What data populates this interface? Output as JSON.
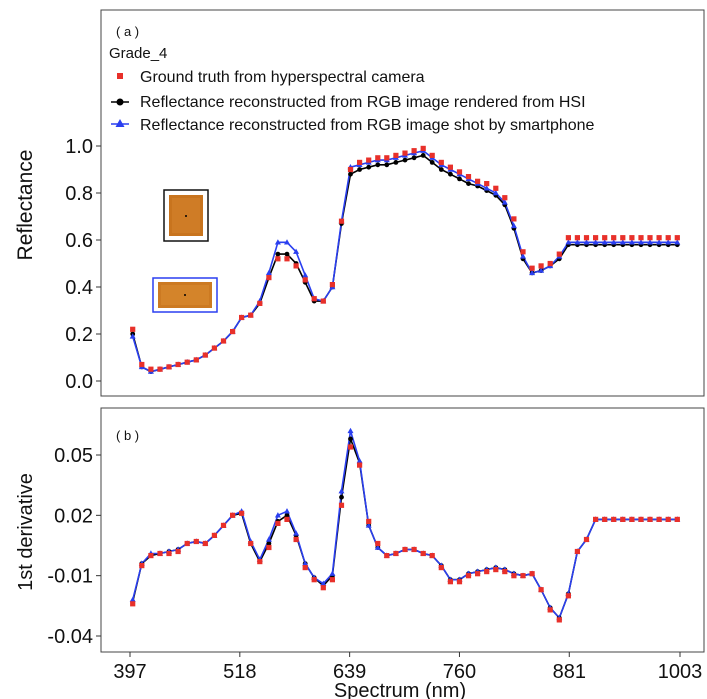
{
  "chart_data": [
    {
      "panel_label": "( a )",
      "subtitle": "Grade_4",
      "type": "scatter",
      "ylabel": "Reflectance",
      "xlim": [
        397,
        1003
      ],
      "ylim": [
        -0.05,
        1.1
      ],
      "yticks": [
        "0.0",
        "0.2",
        "0.4",
        "0.6",
        "0.8",
        "1.0"
      ],
      "yticks_values": [
        0.0,
        0.2,
        0.4,
        0.6,
        0.8,
        1.0
      ],
      "legend_position": "top-left",
      "x": [
        400,
        410,
        420,
        430,
        440,
        450,
        460,
        470,
        480,
        490,
        500,
        510,
        520,
        530,
        540,
        550,
        560,
        570,
        580,
        590,
        600,
        610,
        620,
        630,
        640,
        650,
        660,
        670,
        680,
        690,
        700,
        710,
        720,
        730,
        740,
        750,
        760,
        770,
        780,
        790,
        800,
        810,
        820,
        830,
        840,
        850,
        860,
        870,
        880,
        890,
        900,
        910,
        920,
        930,
        940,
        950,
        960,
        970,
        980,
        990,
        1000
      ],
      "series": [
        {
          "name": "Ground truth from hyperspectral camera",
          "color": "#e8302a",
          "marker": "square",
          "values": [
            0.22,
            0.07,
            0.05,
            0.05,
            0.06,
            0.07,
            0.08,
            0.09,
            0.11,
            0.14,
            0.17,
            0.21,
            0.27,
            0.28,
            0.33,
            0.44,
            0.52,
            0.52,
            0.49,
            0.43,
            0.35,
            0.34,
            0.41,
            0.68,
            0.9,
            0.93,
            0.94,
            0.95,
            0.95,
            0.96,
            0.97,
            0.98,
            0.99,
            0.96,
            0.93,
            0.91,
            0.89,
            0.87,
            0.85,
            0.84,
            0.82,
            0.78,
            0.69,
            0.55,
            0.48,
            0.49,
            0.5,
            0.54,
            0.61,
            0.61,
            0.61,
            0.61,
            0.61,
            0.61,
            0.61,
            0.61,
            0.61,
            0.61,
            0.61,
            0.61,
            0.61
          ]
        },
        {
          "name": "Reflectance reconstructed from RGB image rendered from HSI",
          "color": "#000000",
          "marker": "circle",
          "values": [
            0.2,
            0.06,
            0.04,
            0.05,
            0.06,
            0.07,
            0.08,
            0.09,
            0.11,
            0.14,
            0.17,
            0.21,
            0.27,
            0.28,
            0.33,
            0.44,
            0.54,
            0.54,
            0.5,
            0.42,
            0.34,
            0.34,
            0.4,
            0.67,
            0.88,
            0.9,
            0.91,
            0.92,
            0.92,
            0.93,
            0.94,
            0.95,
            0.96,
            0.93,
            0.9,
            0.88,
            0.86,
            0.84,
            0.83,
            0.81,
            0.79,
            0.75,
            0.65,
            0.52,
            0.46,
            0.47,
            0.49,
            0.52,
            0.58,
            0.58,
            0.58,
            0.58,
            0.58,
            0.58,
            0.58,
            0.58,
            0.58,
            0.58,
            0.58,
            0.58,
            0.58
          ]
        },
        {
          "name": "Reflectance reconstructed from RGB image shot by smartphone",
          "color": "#2a3ff0",
          "marker": "triangle",
          "values": [
            0.19,
            0.06,
            0.04,
            0.05,
            0.06,
            0.07,
            0.08,
            0.09,
            0.11,
            0.14,
            0.17,
            0.21,
            0.27,
            0.28,
            0.34,
            0.46,
            0.59,
            0.59,
            0.55,
            0.45,
            0.35,
            0.34,
            0.4,
            0.68,
            0.91,
            0.92,
            0.93,
            0.94,
            0.94,
            0.95,
            0.96,
            0.97,
            0.98,
            0.95,
            0.92,
            0.9,
            0.88,
            0.86,
            0.84,
            0.82,
            0.8,
            0.76,
            0.66,
            0.53,
            0.46,
            0.47,
            0.49,
            0.53,
            0.59,
            0.59,
            0.59,
            0.59,
            0.59,
            0.59,
            0.59,
            0.59,
            0.59,
            0.59,
            0.59,
            0.59,
            0.59
          ]
        }
      ]
    },
    {
      "panel_label": "( b )",
      "type": "scatter",
      "ylabel": "1st derivative",
      "xlabel": "Spectrum (nm)",
      "xlim": [
        397,
        1003
      ],
      "ylim": [
        -0.045,
        0.068
      ],
      "xticks": [
        "397",
        "518",
        "639",
        "760",
        "881",
        "1003"
      ],
      "xticks_values": [
        397,
        518,
        639,
        760,
        881,
        1003
      ],
      "yticks": [
        "-0.04",
        "-0.01",
        "0.02",
        "0.05"
      ],
      "yticks_values": [
        -0.04,
        -0.01,
        0.02,
        0.05
      ],
      "x": [
        400,
        410,
        420,
        430,
        440,
        450,
        460,
        470,
        480,
        490,
        500,
        510,
        520,
        530,
        540,
        550,
        560,
        570,
        580,
        590,
        600,
        610,
        620,
        630,
        640,
        650,
        660,
        670,
        680,
        690,
        700,
        710,
        720,
        730,
        740,
        750,
        760,
        770,
        780,
        790,
        800,
        810,
        820,
        830,
        840,
        850,
        860,
        870,
        880,
        890,
        900,
        910,
        920,
        930,
        940,
        950,
        960,
        970,
        980,
        990,
        1000
      ],
      "series": [
        {
          "name": "Ground truth from hyperspectral camera",
          "color": "#e8302a",
          "marker": "square",
          "values": [
            -0.024,
            -0.005,
            0.0,
            0.001,
            0.001,
            0.002,
            0.006,
            0.007,
            0.006,
            0.01,
            0.015,
            0.02,
            0.021,
            0.006,
            -0.003,
            0.004,
            0.016,
            0.018,
            0.008,
            -0.006,
            -0.012,
            -0.016,
            -0.012,
            0.025,
            0.054,
            0.045,
            0.017,
            0.006,
            0.0,
            0.001,
            0.003,
            0.003,
            0.001,
            0.0,
            -0.006,
            -0.013,
            -0.013,
            -0.01,
            -0.009,
            -0.008,
            -0.007,
            -0.008,
            -0.01,
            -0.01,
            -0.009,
            -0.017,
            -0.027,
            -0.032,
            -0.02,
            0.002,
            0.008,
            0.018,
            0.018,
            0.018,
            0.018,
            0.018,
            0.018,
            0.018,
            0.018,
            0.018,
            0.018
          ]
        },
        {
          "name": "Reflectance reconstructed from RGB image rendered from HSI",
          "color": "#000000",
          "marker": "circle",
          "values": [
            -0.023,
            -0.004,
            0.0,
            0.001,
            0.002,
            0.003,
            0.006,
            0.007,
            0.006,
            0.01,
            0.015,
            0.02,
            0.021,
            0.006,
            -0.003,
            0.006,
            0.017,
            0.02,
            0.01,
            -0.004,
            -0.011,
            -0.015,
            -0.01,
            0.029,
            0.058,
            0.046,
            0.015,
            0.004,
            0.0,
            0.001,
            0.003,
            0.003,
            0.001,
            0.0,
            -0.005,
            -0.012,
            -0.012,
            -0.009,
            -0.008,
            -0.007,
            -0.006,
            -0.007,
            -0.009,
            -0.01,
            -0.009,
            -0.017,
            -0.026,
            -0.031,
            -0.019,
            0.002,
            0.008,
            0.018,
            0.018,
            0.018,
            0.018,
            0.018,
            0.018,
            0.018,
            0.018,
            0.018,
            0.018
          ]
        },
        {
          "name": "Reflectance reconstructed from RGB image shot by smartphone",
          "color": "#2a3ff0",
          "marker": "triangle",
          "values": [
            -0.022,
            -0.004,
            0.001,
            0.001,
            0.002,
            0.003,
            0.006,
            0.007,
            0.006,
            0.01,
            0.015,
            0.02,
            0.022,
            0.007,
            -0.002,
            0.008,
            0.02,
            0.022,
            0.011,
            -0.004,
            -0.011,
            -0.014,
            -0.009,
            0.032,
            0.062,
            0.047,
            0.015,
            0.004,
            0.0,
            0.001,
            0.003,
            0.003,
            0.001,
            0.0,
            -0.005,
            -0.012,
            -0.012,
            -0.009,
            -0.008,
            -0.007,
            -0.006,
            -0.007,
            -0.009,
            -0.01,
            -0.009,
            -0.017,
            -0.026,
            -0.031,
            -0.019,
            0.002,
            0.008,
            0.018,
            0.018,
            0.018,
            0.018,
            0.018,
            0.018,
            0.018,
            0.018,
            0.018,
            0.018
          ]
        }
      ]
    }
  ]
}
